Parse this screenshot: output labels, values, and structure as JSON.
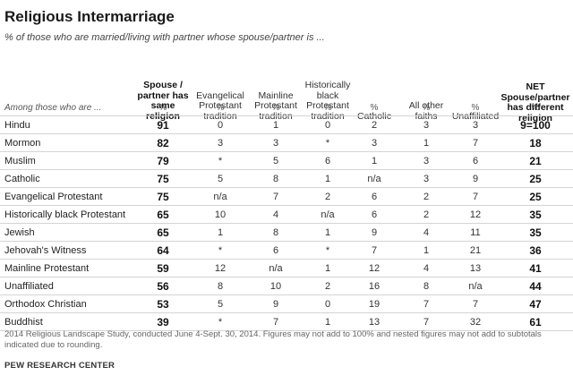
{
  "chart_data": {
    "type": "table",
    "title": "Religious Intermarriage",
    "subtitle": "% of those who are married/living with partner whose spouse/partner is ...",
    "row_header": "Among those who are ...",
    "columns": [
      {
        "label": "Spouse / partner has same religion",
        "unit": "%",
        "bold": true
      },
      {
        "label": "Evangelical Protestant tradition",
        "unit": "%",
        "bold": false
      },
      {
        "label": "Mainline Protestant tradition",
        "unit": "%",
        "bold": false
      },
      {
        "label": "Historically black Protestant tradition",
        "unit": "%",
        "bold": false
      },
      {
        "label": "Catholic",
        "unit": "%",
        "bold": false
      },
      {
        "label": "All other faiths",
        "unit": "%",
        "bold": false
      },
      {
        "label": "Unaffiliated",
        "unit": "%",
        "bold": false
      },
      {
        "label": "NET Spouse/partner has different religion",
        "unit": "%",
        "bold": true
      }
    ],
    "rows": [
      {
        "label": "Hindu",
        "values": [
          "91",
          "0",
          "1",
          "0",
          "2",
          "3",
          "3",
          "9=100"
        ]
      },
      {
        "label": "Mormon",
        "values": [
          "82",
          "3",
          "3",
          "*",
          "3",
          "1",
          "7",
          "18"
        ]
      },
      {
        "label": "Muslim",
        "values": [
          "79",
          "*",
          "5",
          "6",
          "1",
          "3",
          "6",
          "21"
        ]
      },
      {
        "label": "Catholic",
        "values": [
          "75",
          "5",
          "8",
          "1",
          "n/a",
          "3",
          "9",
          "25"
        ]
      },
      {
        "label": "Evangelical Protestant",
        "values": [
          "75",
          "n/a",
          "7",
          "2",
          "6",
          "2",
          "7",
          "25"
        ]
      },
      {
        "label": "Historically black Protestant",
        "values": [
          "65",
          "10",
          "4",
          "n/a",
          "6",
          "2",
          "12",
          "35"
        ]
      },
      {
        "label": "Jewish",
        "values": [
          "65",
          "1",
          "8",
          "1",
          "9",
          "4",
          "11",
          "35"
        ]
      },
      {
        "label": "Jehovah's Witness",
        "values": [
          "64",
          "*",
          "6",
          "*",
          "7",
          "1",
          "21",
          "36"
        ]
      },
      {
        "label": "Mainline Protestant",
        "values": [
          "59",
          "12",
          "n/a",
          "1",
          "12",
          "4",
          "13",
          "41"
        ]
      },
      {
        "label": "Unaffiliated",
        "values": [
          "56",
          "8",
          "10",
          "2",
          "16",
          "8",
          "n/a",
          "44"
        ]
      },
      {
        "label": "Orthodox Christian",
        "values": [
          "53",
          "5",
          "9",
          "0",
          "19",
          "7",
          "7",
          "47"
        ]
      },
      {
        "label": "Buddhist",
        "values": [
          "39",
          "*",
          "7",
          "1",
          "13",
          "7",
          "32",
          "61"
        ]
      }
    ],
    "note": "2014 Religious Landscape Study, conducted June 4-Sept. 30, 2014. Figures may not add to 100% and nested figures may not add to subtotals indicated due to rounding.",
    "source": "PEW RESEARCH CENTER"
  }
}
